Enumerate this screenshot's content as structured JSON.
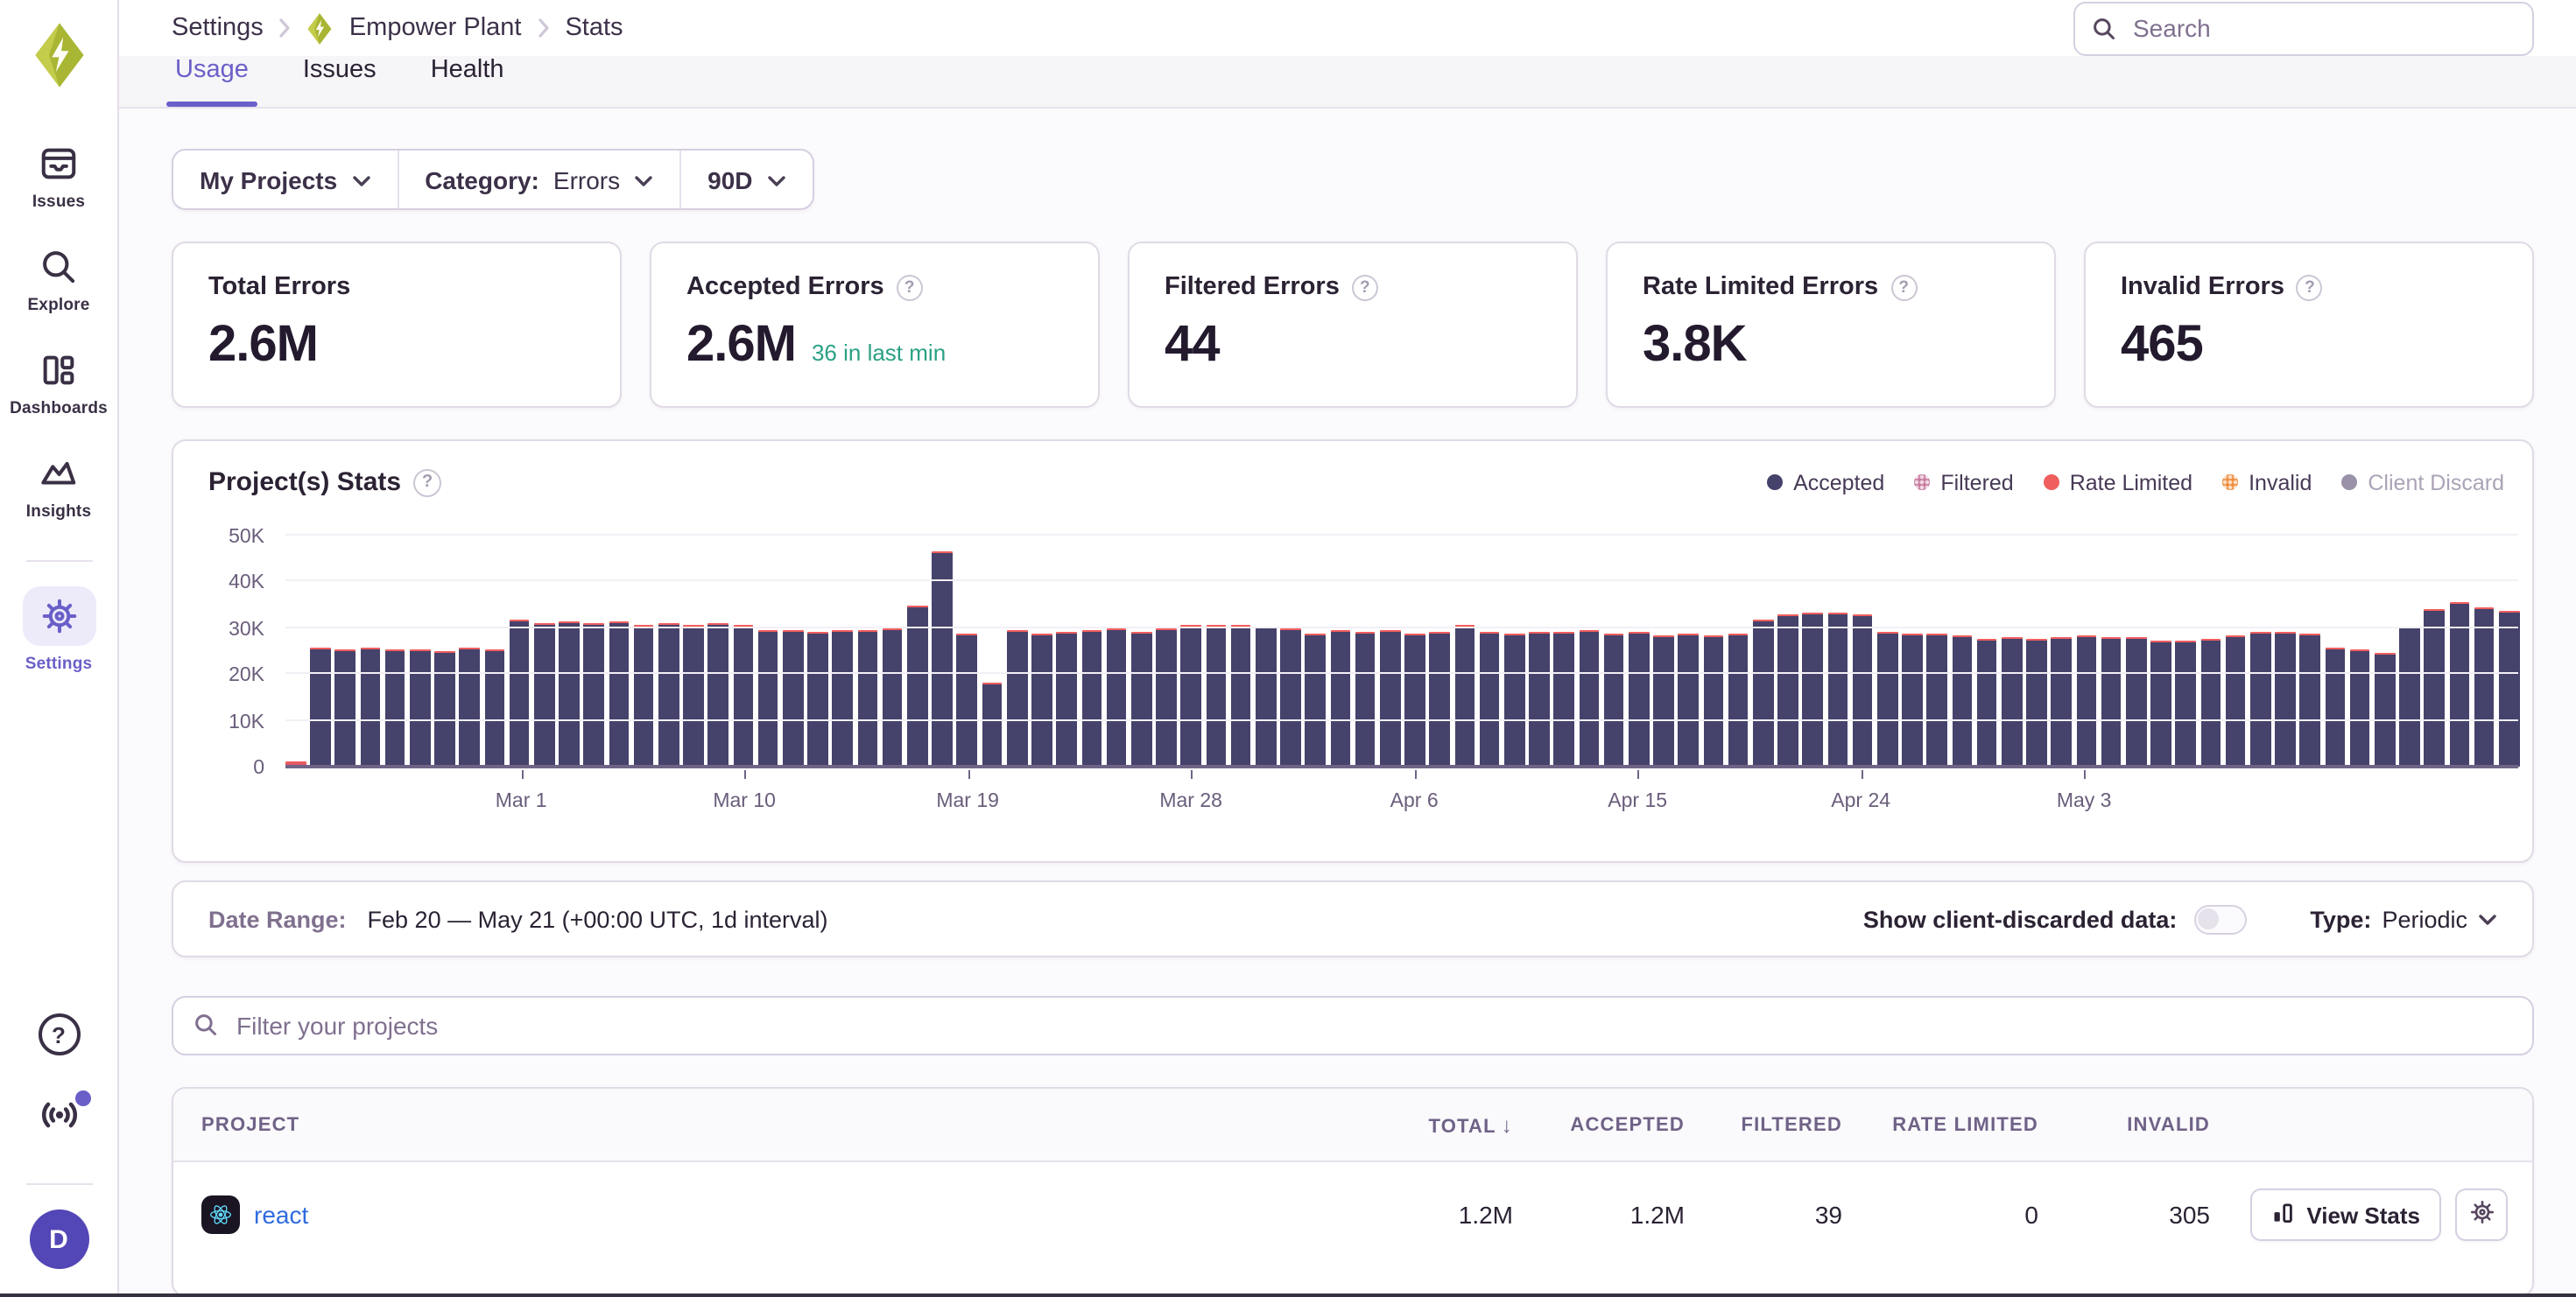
{
  "app": {
    "search_placeholder": "Search"
  },
  "breadcrumb": {
    "items": [
      "Settings",
      "Empower Plant",
      "Stats"
    ]
  },
  "sidebar": {
    "items": [
      {
        "label": "Issues"
      },
      {
        "label": "Explore"
      },
      {
        "label": "Dashboards"
      },
      {
        "label": "Insights"
      },
      {
        "label": "Settings",
        "active": true
      }
    ],
    "avatar_initial": "D"
  },
  "tabs": [
    {
      "label": "Usage",
      "active": true
    },
    {
      "label": "Issues",
      "active": false
    },
    {
      "label": "Health",
      "active": false
    }
  ],
  "filters": {
    "projects": "My Projects",
    "category_label": "Category:",
    "category_value": "Errors",
    "period": "90D"
  },
  "cards": [
    {
      "title": "Total Errors",
      "value": "2.6M"
    },
    {
      "title": "Accepted Errors",
      "value": "2.6M",
      "sub": "36 in last min"
    },
    {
      "title": "Filtered Errors",
      "value": "44"
    },
    {
      "title": "Rate Limited Errors",
      "value": "3.8K"
    },
    {
      "title": "Invalid Errors",
      "value": "465"
    }
  ],
  "chart_data": {
    "type": "bar",
    "title": "Project(s) Stats",
    "xlabel": "",
    "ylabel": "",
    "ylim": [
      0,
      50000
    ],
    "grid": true,
    "y_ticks": [
      "0",
      "10K",
      "20K",
      "30K",
      "40K",
      "50K"
    ],
    "date_start": "Feb 20",
    "date_end": "May 21",
    "interval": "1d",
    "days": 90,
    "x_ticks": [
      {
        "label": "Mar 1",
        "day_index": 9
      },
      {
        "label": "Mar 10",
        "day_index": 18
      },
      {
        "label": "Mar 19",
        "day_index": 27
      },
      {
        "label": "Mar 28",
        "day_index": 36
      },
      {
        "label": "Apr 6",
        "day_index": 45
      },
      {
        "label": "Apr 15",
        "day_index": 54
      },
      {
        "label": "Apr 24",
        "day_index": 63
      },
      {
        "label": "May 3",
        "day_index": 72
      }
    ],
    "legend": [
      {
        "label": "Accepted",
        "color": "#45426b",
        "dotted": false,
        "muted": false
      },
      {
        "label": "Filtered",
        "color": "#c97ba0",
        "dotted": true,
        "muted": false
      },
      {
        "label": "Rate Limited",
        "color": "#f05e5e",
        "dotted": false,
        "muted": false
      },
      {
        "label": "Invalid",
        "color": "#ef8e3e",
        "dotted": true,
        "muted": false
      },
      {
        "label": "Client Discard",
        "color": "#9a92a8",
        "dotted": false,
        "muted": true
      }
    ],
    "series": [
      {
        "name": "Accepted (daily events, thousands)",
        "values_k": [
          1.0,
          25.6,
          25.3,
          25.7,
          25.2,
          25.5,
          25.1,
          25.6,
          25.4,
          31.7,
          30.9,
          31.4,
          31.1,
          31.5,
          30.8,
          31.2,
          30.7,
          31.0,
          30.8,
          29.5,
          29.7,
          29.3,
          29.6,
          29.4,
          30.0,
          34.7,
          46.5,
          28.8,
          18.3,
          29.6,
          28.6,
          29.1,
          29.7,
          29.8,
          29.1,
          30.1,
          30.5,
          30.5,
          30.8,
          30.2,
          29.9,
          28.9,
          29.5,
          29.3,
          29.5,
          28.9,
          29.2,
          30.8,
          29.1,
          28.8,
          29.3,
          29.0,
          29.4,
          28.7,
          29.0,
          28.5,
          28.8,
          28.4,
          28.7,
          31.9,
          33.0,
          33.4,
          33.2,
          32.8,
          29.3,
          28.6,
          28.9,
          28.3,
          27.8,
          28.1,
          27.6,
          28.0,
          28.4,
          27.9,
          28.1,
          27.2,
          27.3,
          27.5,
          28.3,
          29.2,
          29.2,
          28.6,
          25.8,
          25.4,
          24.7,
          30.3,
          34.1,
          35.7,
          34.5,
          33.9
        ]
      },
      {
        "name": "Rate Limited / Invalid cap",
        "note": "thin ~0.3-0.5K coral cap rendered on top of each daily bar"
      }
    ]
  },
  "range_bar": {
    "label": "Date Range:",
    "value": "Feb 20 — May 21 (+00:00 UTC, 1d interval)",
    "toggle_label": "Show client-discarded data:",
    "toggle_on": false,
    "type_label": "Type:",
    "type_value": "Periodic"
  },
  "project_filter": {
    "placeholder": "Filter your projects"
  },
  "table": {
    "columns": [
      "PROJECT",
      "TOTAL",
      "ACCEPTED",
      "FILTERED",
      "RATE LIMITED",
      "INVALID"
    ],
    "sorted_by": "TOTAL",
    "rows": [
      {
        "project": "react",
        "total": "1.2M",
        "accepted": "1.2M",
        "filtered": "39",
        "rate_limited": "0",
        "invalid": "305",
        "action": "View Stats"
      }
    ]
  }
}
